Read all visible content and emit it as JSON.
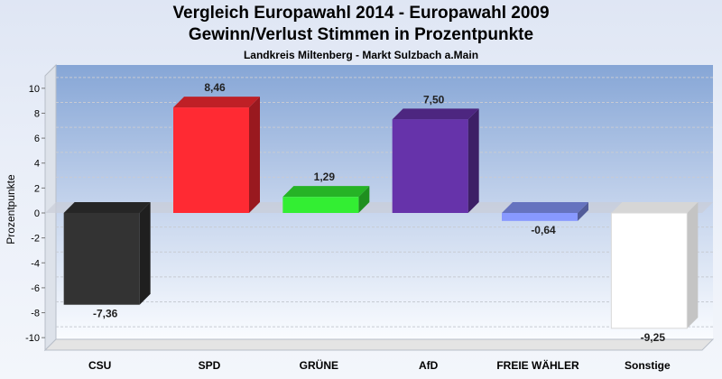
{
  "chart": {
    "title_line1": "Vergleich Europawahl 2014 - Europawahl 2009",
    "title_line2": "Gewinn/Verlust Stimmen in Prozentpunkte",
    "subtitle": "Landkreis Miltenberg - Markt Sulzbach a.Main",
    "ylabel": "Prozentpunkte"
  },
  "chart_data": {
    "type": "bar",
    "title": "Vergleich Europawahl 2014 - Europawahl 2009 / Gewinn/Verlust Stimmen in Prozentpunkte",
    "subtitle": "Landkreis Miltenberg - Markt Sulzbach a.Main",
    "xlabel": "",
    "ylabel": "Prozentpunkte",
    "ylim": [
      -11,
      11
    ],
    "yticks": [
      -10,
      -8,
      -6,
      -4,
      -2,
      0,
      2,
      4,
      6,
      8,
      10
    ],
    "grid": true,
    "categories": [
      "CSU",
      "SPD",
      "GRÜNE",
      "AfD",
      "FREIE WÄHLER",
      "Sonstige"
    ],
    "values": [
      -7.36,
      8.46,
      1.29,
      7.5,
      -0.64,
      -9.25
    ],
    "value_labels": [
      "-7,36",
      "8,46",
      "1,29",
      "7,50",
      "-0,64",
      "-9,25"
    ],
    "colors": [
      "#333333",
      "#ff2a33",
      "#33ee33",
      "#6633aa",
      "#8899ff",
      "#ffffff"
    ]
  }
}
